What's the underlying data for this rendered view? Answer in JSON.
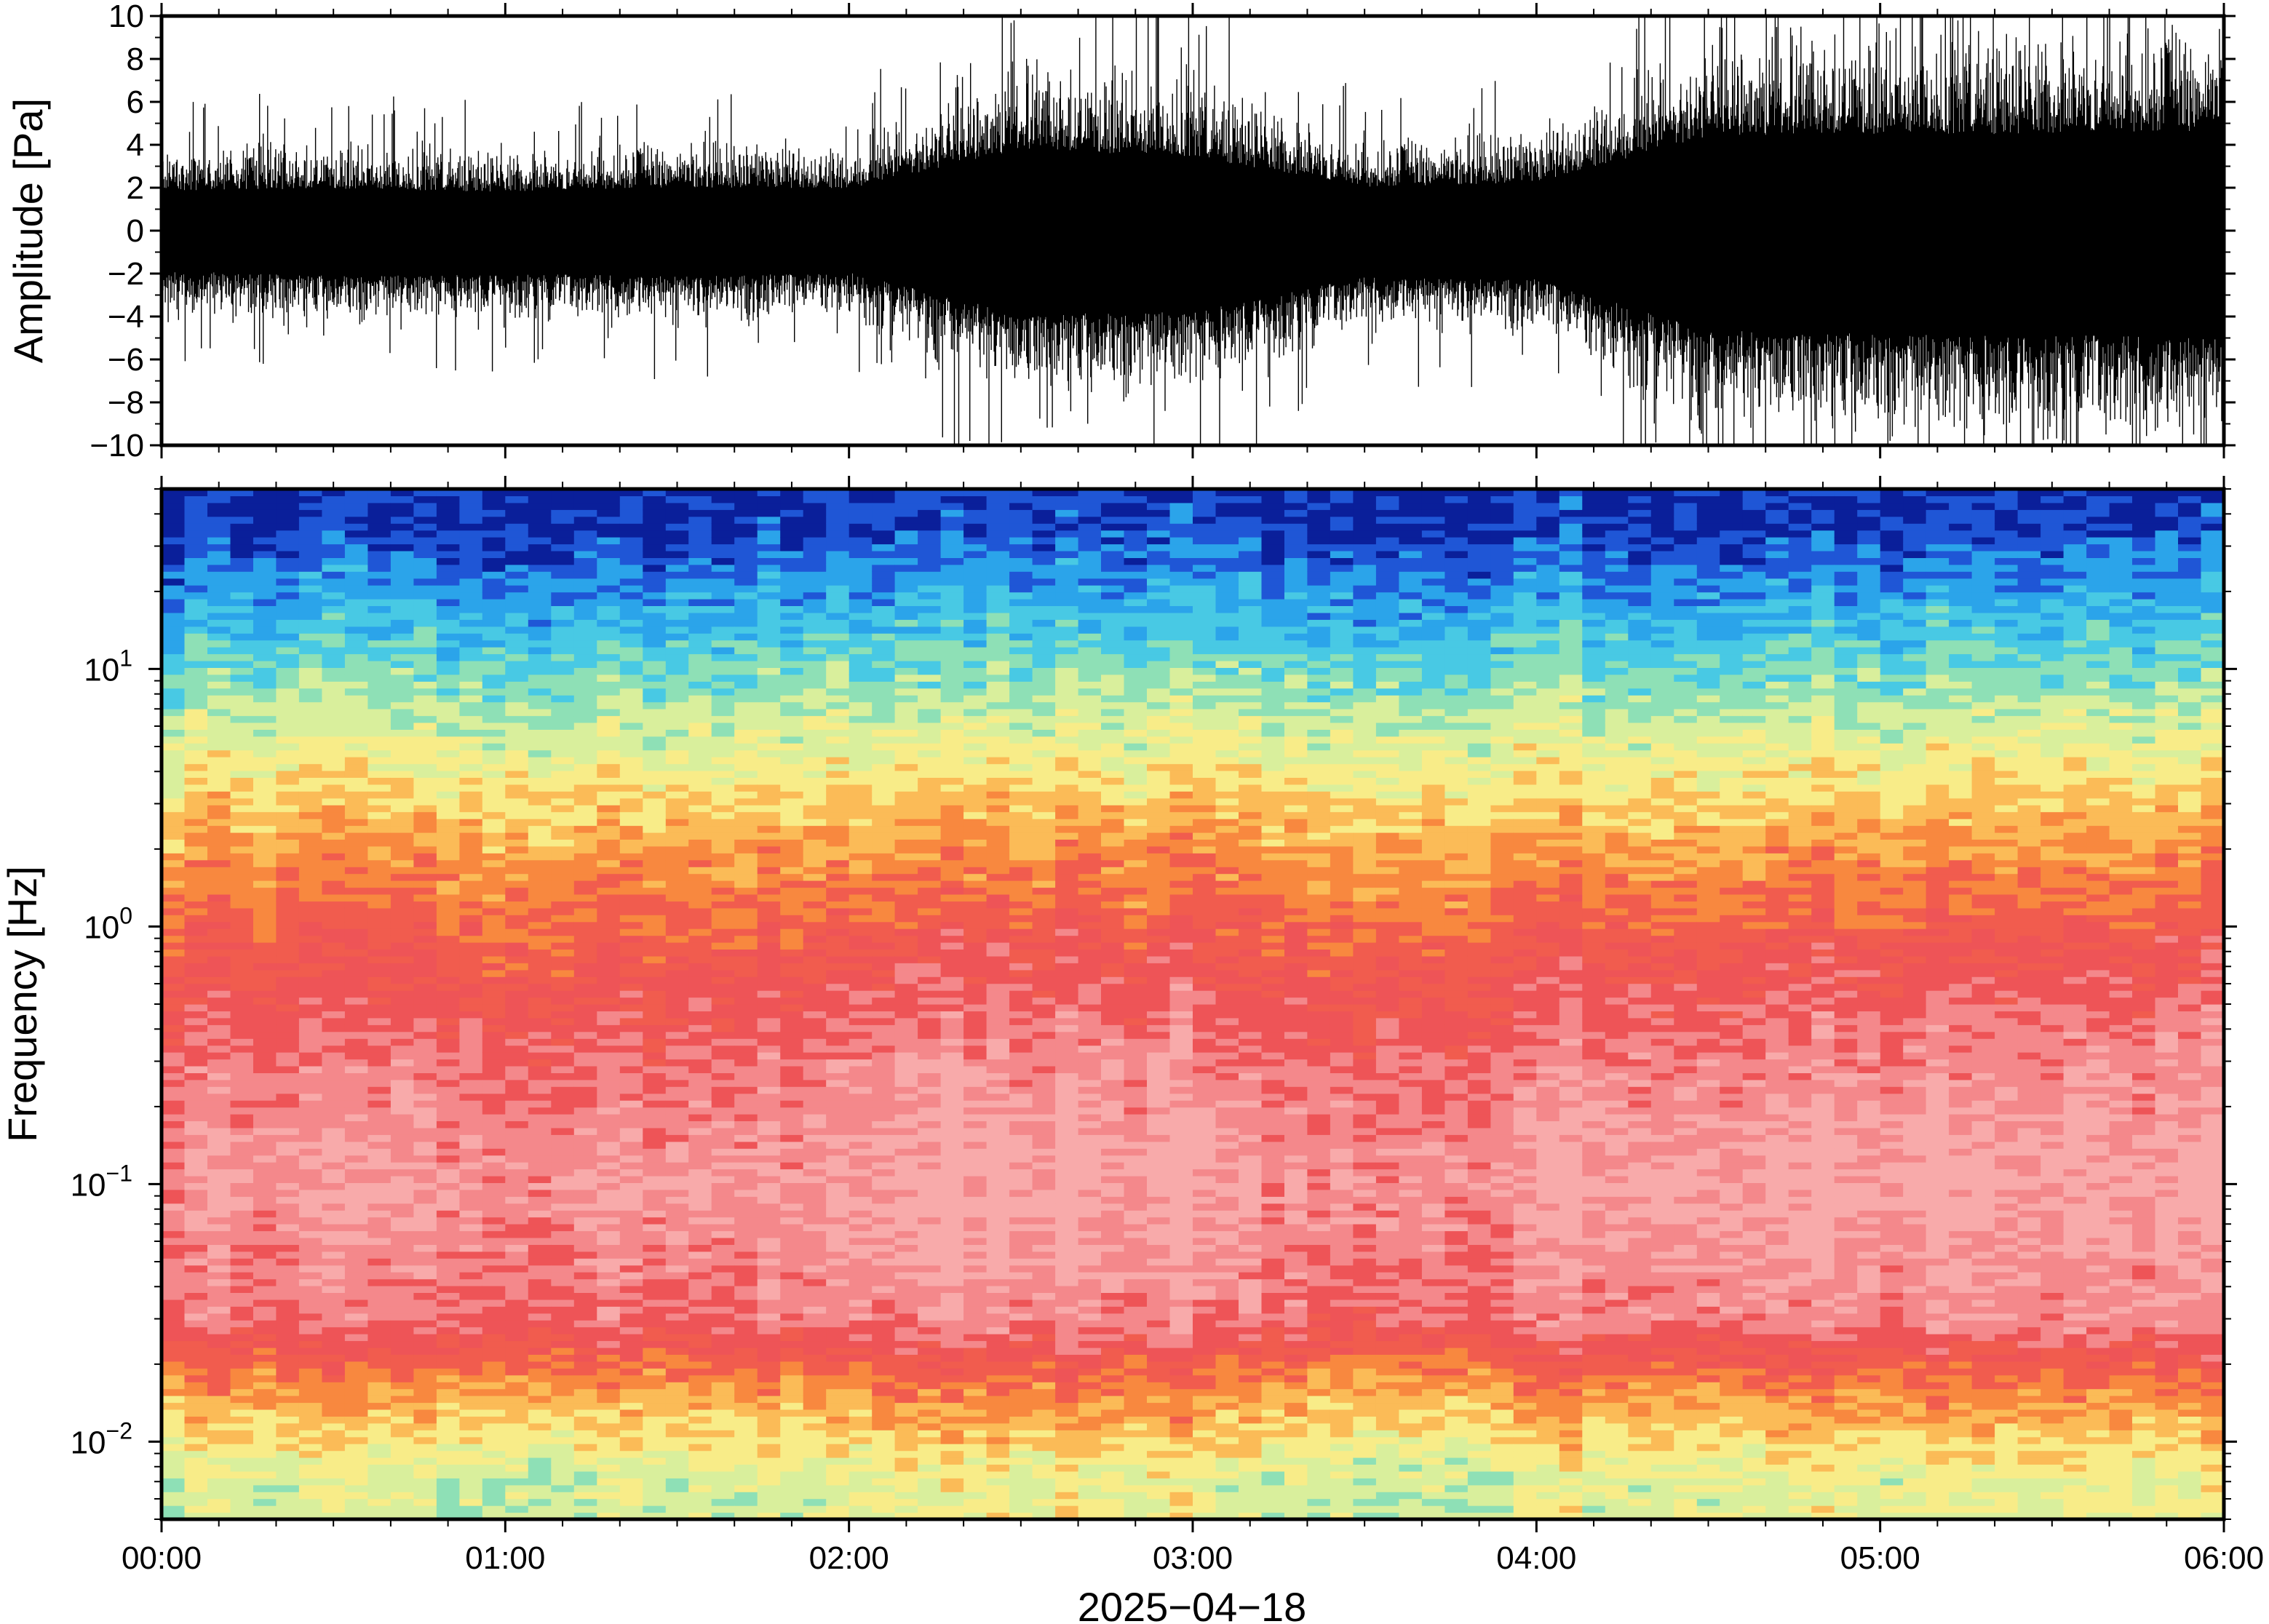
{
  "chart_data": [
    {
      "type": "line",
      "panel": "waveform",
      "ylabel": "Amplitude [Pa]",
      "ylim": [
        -10,
        10
      ],
      "yticks": [
        -10,
        -8,
        -6,
        -4,
        -2,
        0,
        2,
        4,
        6,
        8,
        10
      ],
      "ytick_labels": [
        "−10",
        "−8",
        "−6",
        "−4",
        "−2",
        "0",
        "2",
        "4",
        "6",
        "8",
        "10"
      ],
      "color": "#000000",
      "series": [
        {
          "x": [
            "00:00",
            "00:30",
            "01:00",
            "01:30",
            "02:00",
            "02:30",
            "03:00",
            "03:30",
            "04:00",
            "04:30",
            "05:00",
            "05:30",
            "06:00"
          ],
          "envelope_upper": [
            2.5,
            2.6,
            2.4,
            2.7,
            2.6,
            5.0,
            4.6,
            2.7,
            3.0,
            5.8,
            6.0,
            6.0,
            6.2
          ],
          "envelope_lower": [
            -2.5,
            -2.8,
            -2.7,
            -2.8,
            -2.6,
            -5.2,
            -5.0,
            -2.9,
            -3.0,
            -6.2,
            -6.4,
            -6.5,
            -6.6
          ],
          "peak_max": 10,
          "peak_min": -10
        }
      ]
    },
    {
      "type": "heatmap",
      "panel": "spectrogram",
      "ylabel": "Frequency [Hz]",
      "xlabel": "2025−04−18",
      "y_scale": "log",
      "ylim_hz": [
        0.005,
        50
      ],
      "yticks_hz": [
        0.01,
        0.1,
        1,
        10
      ],
      "ytick_labels": [
        {
          "base": "10",
          "exp": "−2"
        },
        {
          "base": "10",
          "exp": "−1"
        },
        {
          "base": "10",
          "exp": "0"
        },
        {
          "base": "10",
          "exp": "1"
        }
      ],
      "xticks": [
        "00:00",
        "01:00",
        "02:00",
        "03:00",
        "04:00",
        "05:00",
        "06:00"
      ],
      "colormap": [
        "#0a1f9a",
        "#1f56d6",
        "#2ba4ea",
        "#48c9e4",
        "#8ee0b6",
        "#d9ef9c",
        "#f8ec88",
        "#fbbb57",
        "#f8883f",
        "#f15c4e",
        "#ee5457",
        "#f4888b",
        "#f8aaaa"
      ],
      "relative_power_by_band": [
        {
          "freq_hz": 40,
          "level": 0.06
        },
        {
          "freq_hz": 20,
          "level": 0.18
        },
        {
          "freq_hz": 10,
          "level": 0.32
        },
        {
          "freq_hz": 5,
          "level": 0.45
        },
        {
          "freq_hz": 2,
          "level": 0.62
        },
        {
          "freq_hz": 1,
          "level": 0.72
        },
        {
          "freq_hz": 0.3,
          "level": 0.85
        },
        {
          "freq_hz": 0.1,
          "level": 0.92
        },
        {
          "freq_hz": 0.03,
          "level": 0.85
        },
        {
          "freq_hz": 0.015,
          "level": 0.6
        },
        {
          "freq_hz": 0.007,
          "level": 0.42
        }
      ]
    }
  ]
}
